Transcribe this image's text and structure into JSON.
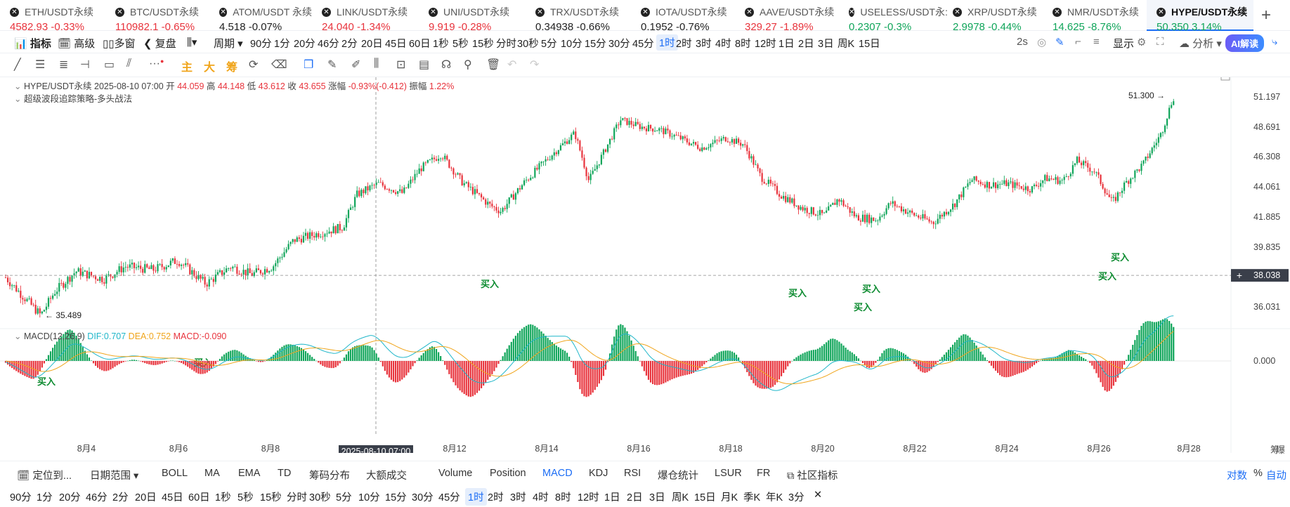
{
  "tickers": [
    {
      "name": "ETH/USDT永续",
      "price": "4582.93",
      "change": "-0.33%",
      "dir": "red"
    },
    {
      "name": "BTC/USDT永续",
      "price": "110982.1",
      "change": "-0.65%",
      "dir": "red"
    },
    {
      "name": "ATOM/USDT 永续",
      "price": "4.518",
      "change": "-0.07%",
      "dir": "blk"
    },
    {
      "name": "LINK/USDT永续",
      "price": "24.040",
      "change": "-1.34%",
      "dir": "red"
    },
    {
      "name": "UNI/USDT永续",
      "price": "9.919",
      "change": "-0.28%",
      "dir": "red"
    },
    {
      "name": "TRX/USDT永续",
      "price": "0.34938",
      "change": "-0.66%",
      "dir": "blk"
    },
    {
      "name": "IOTA/USDT永续",
      "price": "0.1952",
      "change": "-0.76%",
      "dir": "blk"
    },
    {
      "name": "AAVE/USDT永续",
      "price": "329.27",
      "change": "-1.89%",
      "dir": "red"
    },
    {
      "name": "USELESS/USDT永:",
      "price": "0.2307",
      "change": "-0.3%",
      "dir": "grn"
    },
    {
      "name": "XRP/USDT永续",
      "price": "2.9978",
      "change": "-0.44%",
      "dir": "grn"
    },
    {
      "name": "NMR/USDT永续",
      "price": "14.625",
      "change": "-8.76%",
      "dir": "grn"
    },
    {
      "name": "HYPE/USDT永续",
      "price": "50.350",
      "change": "3.14%",
      "dir": "grn",
      "active": true
    }
  ],
  "toolbar": {
    "indicator": "指标",
    "advanced": "高级",
    "multi": "多窗",
    "replay": "复盘",
    "period": "周期",
    "intervals": [
      "90分",
      "1分",
      "20分",
      "46分",
      "2分",
      "20日",
      "45日",
      "60日",
      "1秒",
      "5秒",
      "15秒",
      "分时",
      "30秒",
      "5分",
      "10分",
      "15分",
      "30分",
      "45分",
      "1时",
      "2时",
      "3时",
      "4时",
      "8时",
      "12时",
      "1日",
      "2日",
      "3日",
      "周K",
      "15日"
    ],
    "selected_interval": "1时",
    "refresh": "2s",
    "display": "显示",
    "analysis": "分析",
    "ai": "AI解读"
  },
  "drawbar": {
    "main": "主",
    "big": "大",
    "chips": "筹"
  },
  "legend": {
    "symbol": "HYPE/USDT永续",
    "datetime": "2025-08-10 07:00",
    "open_label": "开",
    "open": "44.059",
    "high_label": "高",
    "high": "44.148",
    "low_label": "低",
    "low": "43.612",
    "close_label": "收",
    "close": "43.655",
    "chg_label": "涨幅",
    "chg": "-0.93%(-0.412)",
    "amp_label": "振幅",
    "amp": "1.22%",
    "strategy": "超级波段追踪策略-多头战法"
  },
  "macd_legend": {
    "name": "MACD(12,26,9)",
    "dif": "DIF:0.707",
    "dea": "DEA:0.752",
    "macd": "MACD:-0.090"
  },
  "chart_data": {
    "type": "candlestick",
    "y_ticks": [
      "51.197",
      "48.691",
      "46.308",
      "44.061",
      "41.885",
      "39.835",
      "36.031"
    ],
    "x_ticks": [
      "8月4",
      "8月6",
      "8月8",
      "8月12",
      "8月14",
      "8月16",
      "8月18",
      "8月20",
      "8月22",
      "8月24",
      "8月26",
      "8月28"
    ],
    "crosshair_x_label": "2025-08-10 07:00",
    "crosshair_price": "38.038",
    "max_label": "51.300",
    "min_label": "35.489",
    "macd_zero": "0.000",
    "buy_label": "买入",
    "buy_signals": [
      {
        "date": "2025-08-03",
        "price": 35.4
      },
      {
        "date": "2025-08-06",
        "price": 37.8
      },
      {
        "date": "2025-08-12",
        "price": 42.1
      },
      {
        "date": "2025-08-19",
        "price": 41.4
      },
      {
        "date": "2025-08-20",
        "price": 40.3
      },
      {
        "date": "2025-08-21",
        "price": 41.6
      },
      {
        "date": "2025-08-26",
        "price": 41.9
      },
      {
        "date": "2025-08-26",
        "price": 42.9
      }
    ]
  },
  "right_side": {
    "chips": "筹",
    "burst": "爆"
  },
  "bottombar": {
    "locate": "定位到...",
    "range": "日期范围",
    "indicators": [
      "BOLL",
      "MA",
      "EMA",
      "TD",
      "筹码分布",
      "大额成交"
    ],
    "sub_indicators": [
      "Volume",
      "Position",
      "MACD",
      "KDJ",
      "RSI",
      "爆仓统计",
      "LSUR",
      "FR"
    ],
    "selected_sub": "MACD",
    "community": "社区指标",
    "log": "对数",
    "percent": "%",
    "auto": "自动"
  },
  "intervalbar": {
    "items": [
      "90分",
      "1分",
      "20分",
      "46分",
      "2分",
      "20日",
      "45日",
      "60日",
      "1秒",
      "5秒",
      "15秒",
      "分时",
      "30秒",
      "5分",
      "10分",
      "15分",
      "30分",
      "45分",
      "1时",
      "2时",
      "3时",
      "4时",
      "8时",
      "12时",
      "1日",
      "2日",
      "3日",
      "周K",
      "15日",
      "月K",
      "季K",
      "年K",
      "3分"
    ],
    "selected": "1时"
  },
  "colors": {
    "up": "#10a55a",
    "down": "#e8333c",
    "dif": "#1fb6c9",
    "dea": "#f0a51c",
    "accent": "#1d6ef5"
  }
}
